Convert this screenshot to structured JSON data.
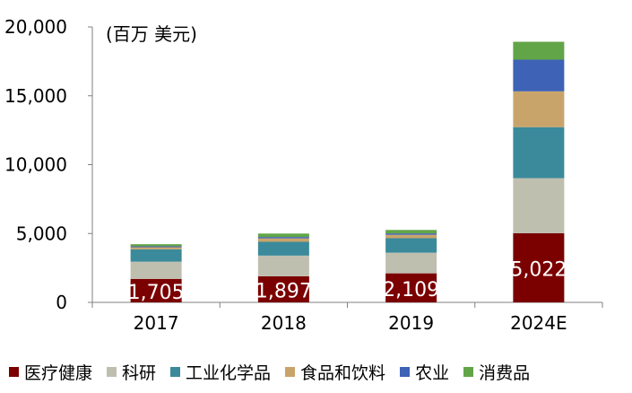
{
  "chart_data": {
    "type": "bar",
    "stacked": true,
    "unit_label": "(百万 美元)",
    "categories": [
      "2017",
      "2018",
      "2019",
      "2024E"
    ],
    "ylim": [
      0,
      20000
    ],
    "yticks": [
      "0",
      "5,000",
      "10,000",
      "15,000",
      "20,000"
    ],
    "ytick_values": [
      0,
      5000,
      10000,
      15000,
      20000
    ],
    "series": [
      {
        "name": "医疗健康",
        "color": "#7b0000",
        "values": [
          1705,
          1897,
          2109,
          5022
        ],
        "labels": [
          "1,705",
          "1,897",
          "2,109",
          "5,022"
        ]
      },
      {
        "name": "科研",
        "color": "#bfbfb0",
        "values": [
          1250,
          1500,
          1500,
          4000
        ]
      },
      {
        "name": "工业化学品",
        "color": "#3a8a9b",
        "values": [
          900,
          1000,
          1050,
          3700
        ]
      },
      {
        "name": "食品和饮料",
        "color": "#c9a46a",
        "values": [
          150,
          250,
          250,
          2600
        ]
      },
      {
        "name": "农业",
        "color": "#3e62b5",
        "values": [
          70,
          100,
          100,
          2300
        ]
      },
      {
        "name": "消费品",
        "color": "#62a548",
        "values": [
          150,
          250,
          250,
          1300
        ]
      }
    ]
  }
}
